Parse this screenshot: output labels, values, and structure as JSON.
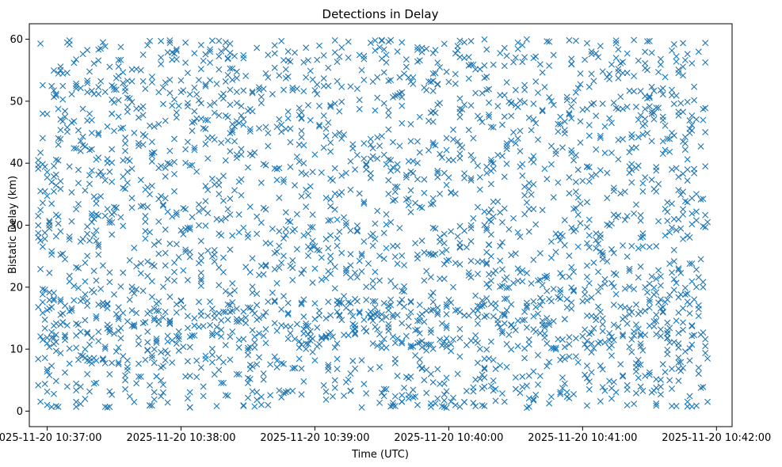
{
  "chart_data": {
    "type": "scatter",
    "title": "Detections in Delay",
    "xlabel": "Time (UTC)",
    "ylabel": "Bistatic Delay (km)",
    "xlim": [
      "2025-11-20 10:36:52",
      "2025-11-20 10:42:07"
    ],
    "ylim": [
      -2.5,
      62.5
    ],
    "x_ticks": [
      "2025-11-20 10:37:00",
      "2025-11-20 10:38:00",
      "2025-11-20 10:39:00",
      "2025-11-20 10:40:00",
      "2025-11-20 10:41:00",
      "2025-11-20 10:42:00"
    ],
    "y_ticks": [
      0,
      10,
      20,
      30,
      40,
      50,
      60
    ],
    "marker": "x",
    "grid": false,
    "series": [
      {
        "color": "#1f77b4",
        "x_range": [
          "2025-11-20 10:36:56",
          "2025-11-20 10:41:56"
        ],
        "y_range": [
          0.5,
          60
        ],
        "points": [
          [
            "2025-11-20 10:36:58",
            11.5
          ],
          [
            "2025-11-20 10:37:03",
            11.8
          ],
          [
            "2025-11-20 10:37:08",
            12.0
          ],
          [
            "2025-11-20 10:37:13",
            12.2
          ],
          [
            "2025-11-20 10:37:18",
            12.5
          ],
          [
            "2025-11-20 10:37:23",
            12.8
          ],
          [
            "2025-11-20 10:37:28",
            13.1
          ],
          [
            "2025-11-20 10:37:33",
            13.4
          ],
          [
            "2025-11-20 10:37:38",
            13.8
          ],
          [
            "2025-11-20 10:37:43",
            14.2
          ],
          [
            "2025-11-20 10:37:48",
            15.0
          ],
          [
            "2025-11-20 10:37:53",
            16.0
          ],
          [
            "2025-11-20 10:38:58",
            11.4
          ],
          [
            "2025-11-20 10:39:03",
            11.7
          ],
          [
            "2025-11-20 10:39:08",
            12.0
          ],
          [
            "2025-11-20 10:39:13",
            12.3
          ],
          [
            "2025-11-20 10:39:18",
            12.6
          ],
          [
            "2025-11-20 10:39:23",
            12.9
          ],
          [
            "2025-11-20 10:39:28",
            13.2
          ],
          [
            "2025-11-20 10:39:33",
            13.5
          ],
          [
            "2025-11-20 10:41:13",
            12.0
          ],
          [
            "2025-11-20 10:41:18",
            12.1
          ],
          [
            "2025-11-20 10:41:23",
            12.2
          ],
          [
            "2025-11-20 10:41:28",
            12.3
          ],
          [
            "2025-11-20 10:41:33",
            12.4
          ],
          [
            "2025-11-20 10:41:38",
            12.5
          ],
          [
            "2025-11-20 10:41:43",
            12.6
          ],
          [
            "2025-11-20 10:36:57",
            59.3
          ],
          [
            "2025-11-20 10:37:10",
            59.8
          ],
          [
            "2025-11-20 10:37:25",
            59.5
          ],
          [
            "2025-11-20 10:37:55",
            59.8
          ],
          [
            "2025-11-20 10:38:20",
            59.5
          ],
          [
            "2025-11-20 10:38:45",
            59.7
          ],
          [
            "2025-11-20 10:39:15",
            59.6
          ],
          [
            "2025-11-20 10:40:10",
            59.7
          ],
          [
            "2025-11-20 10:40:45",
            59.6
          ],
          [
            "2025-11-20 10:41:30",
            59.7
          ],
          [
            "2025-11-20 10:41:55",
            59.4
          ],
          [
            "2025-11-20 10:37:00",
            1.0
          ],
          [
            "2025-11-20 10:37:04",
            0.8
          ],
          [
            "2025-11-20 10:37:47",
            0.9
          ],
          [
            "2025-11-20 10:38:04",
            0.6
          ],
          [
            "2025-11-20 10:39:35",
            0.9
          ],
          [
            "2025-11-20 10:40:12",
            0.8
          ],
          [
            "2025-11-20 10:41:02",
            0.9
          ],
          [
            "2025-11-20 10:41:56",
            1.5
          ],
          [
            "2025-11-20 10:36:57",
            35.5
          ],
          [
            "2025-11-20 10:36:57",
            27.5
          ],
          [
            "2025-11-20 10:36:58",
            48.0
          ],
          [
            "2025-11-20 10:41:55",
            45.0
          ],
          [
            "2025-11-20 10:41:56",
            30.5
          ],
          [
            "2025-11-20 10:41:54",
            20.0
          ],
          [
            "2025-11-20 10:41:56",
            8.5
          ],
          [
            "2025-11-20 10:41:55",
            39.5
          ]
        ]
      }
    ]
  }
}
